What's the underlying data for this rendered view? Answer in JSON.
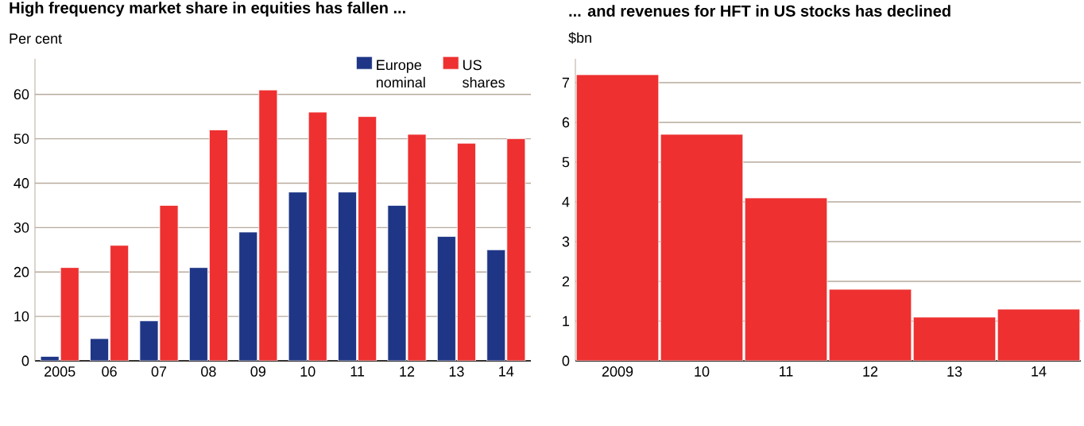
{
  "chart_data": [
    {
      "type": "bar",
      "title": "High frequency market share in equities has fallen ...",
      "ylabel": "Per cent",
      "categories": [
        "2005",
        "06",
        "07",
        "08",
        "09",
        "10",
        "11",
        "12",
        "13",
        "14"
      ],
      "series": [
        {
          "name": "Europe nominal",
          "color": "#1f3686",
          "values": [
            1,
            5,
            9,
            21,
            29,
            38,
            38,
            35,
            28,
            25
          ]
        },
        {
          "name": "US shares",
          "color": "#ee3030",
          "values": [
            21,
            26,
            35,
            52,
            61,
            56,
            55,
            51,
            49,
            50
          ]
        }
      ],
      "ylim": [
        0,
        68
      ],
      "yticks": [
        0,
        10,
        20,
        30,
        40,
        50,
        60
      ],
      "grid": "y",
      "legend": "top right"
    },
    {
      "type": "bar",
      "title": "... and revenues for HFT in US stocks has declined",
      "ylabel": "$bn",
      "categories": [
        "2009",
        "10",
        "11",
        "12",
        "13",
        "14"
      ],
      "values": [
        7.2,
        5.7,
        4.1,
        1.8,
        1.1,
        1.3
      ],
      "color": "#ee3030",
      "ylim": [
        0,
        7.6
      ],
      "yticks": [
        0,
        1,
        2,
        3,
        4,
        5,
        6,
        7
      ],
      "grid": "y"
    }
  ]
}
